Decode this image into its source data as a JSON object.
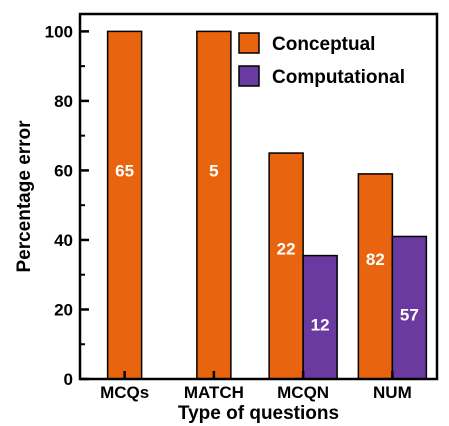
{
  "chart_data": {
    "type": "bar",
    "xlabel": "Type of questions",
    "ylabel": "Percentage error",
    "ylim": [
      0,
      105
    ],
    "yticks": [
      0,
      20,
      40,
      60,
      80,
      100
    ],
    "categories": [
      "MCQs",
      "MATCH",
      "MCQN",
      "NUM"
    ],
    "series": [
      {
        "name": "Conceptual",
        "color": "#e8640f",
        "values": [
          100,
          100,
          65,
          59
        ],
        "labels": [
          "65",
          "5",
          "22",
          "82"
        ]
      },
      {
        "name": "Computational",
        "color": "#6a3aa0",
        "values": [
          null,
          null,
          35.5,
          41
        ],
        "labels": [
          "",
          "",
          "12",
          "57"
        ]
      }
    ],
    "legend_position": "top-right",
    "grid": false
  }
}
